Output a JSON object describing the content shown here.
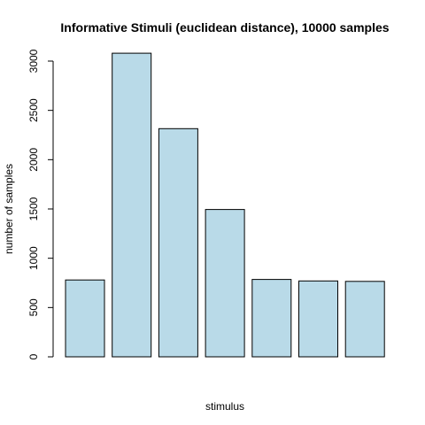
{
  "chart_data": {
    "type": "bar",
    "title": "Informative Stimuli (euclidean distance), 10000 samples",
    "xlabel": "stimulus",
    "ylabel": "number of samples",
    "categories": [
      "",
      "",
      "",
      "",
      "",
      "",
      ""
    ],
    "values": [
      780,
      3080,
      2315,
      1495,
      785,
      770,
      765
    ],
    "ylim": [
      0,
      3000
    ],
    "yticks": [
      0,
      500,
      1000,
      1500,
      2000,
      2500,
      3000
    ],
    "bar_color": "#b9dae8",
    "grid": false
  }
}
